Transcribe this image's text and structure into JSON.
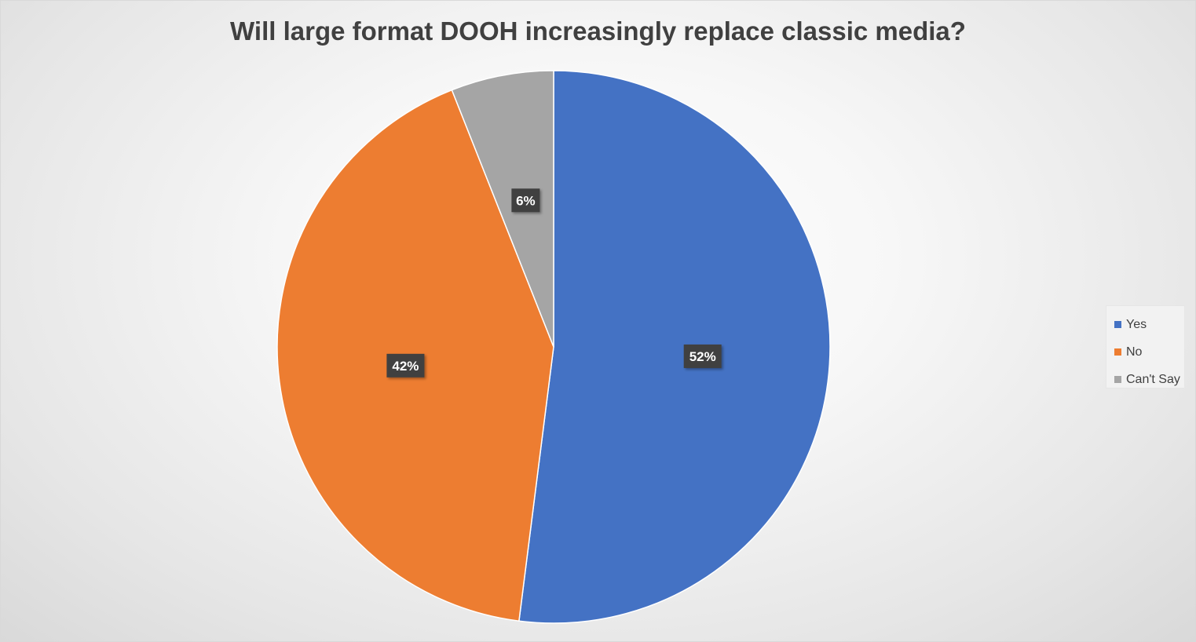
{
  "chart_data": {
    "type": "pie",
    "title": "Will large format DOOH increasingly replace classic media?",
    "categories": [
      "Yes",
      "No",
      "Can't Say"
    ],
    "values": [
      52,
      42,
      6
    ],
    "data_labels": [
      "52%",
      "42%",
      "6%"
    ],
    "colors": [
      "#4472c4",
      "#ed7d31",
      "#a5a5a5"
    ],
    "legend_position": "right",
    "start_angle": "top",
    "direction": "clockwise"
  }
}
